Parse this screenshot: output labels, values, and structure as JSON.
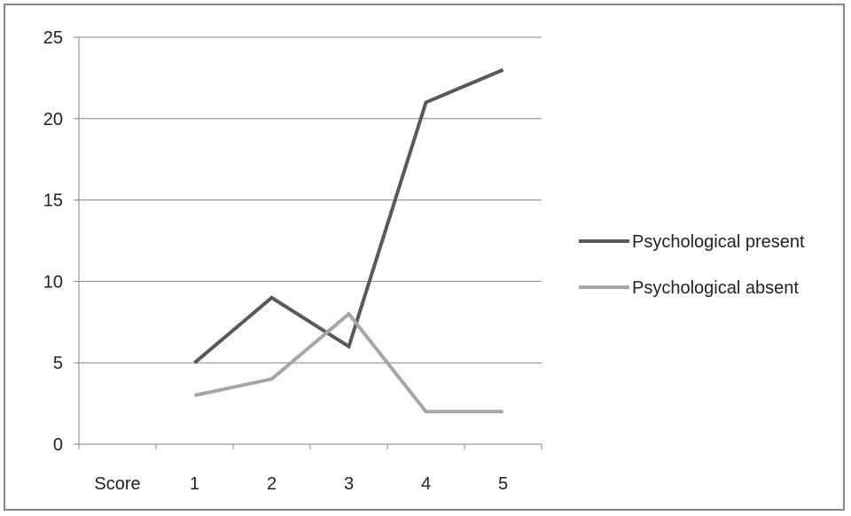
{
  "chart_data": {
    "type": "line",
    "categories": [
      "Score",
      "1",
      "2",
      "3",
      "4",
      "5"
    ],
    "series": [
      {
        "name": "Psychological present",
        "color": "#595959",
        "values": [
          null,
          5,
          9,
          6,
          21,
          23
        ]
      },
      {
        "name": "Psychological absent",
        "color": "#a6a6a6",
        "values": [
          null,
          3,
          4,
          8,
          2,
          2
        ]
      }
    ],
    "yticks": [
      "0",
      "5",
      "10",
      "15",
      "20",
      "25"
    ],
    "ylim": [
      0,
      25
    ],
    "grid": true,
    "legend_position": "right",
    "title": "",
    "xlabel": "",
    "ylabel": ""
  }
}
